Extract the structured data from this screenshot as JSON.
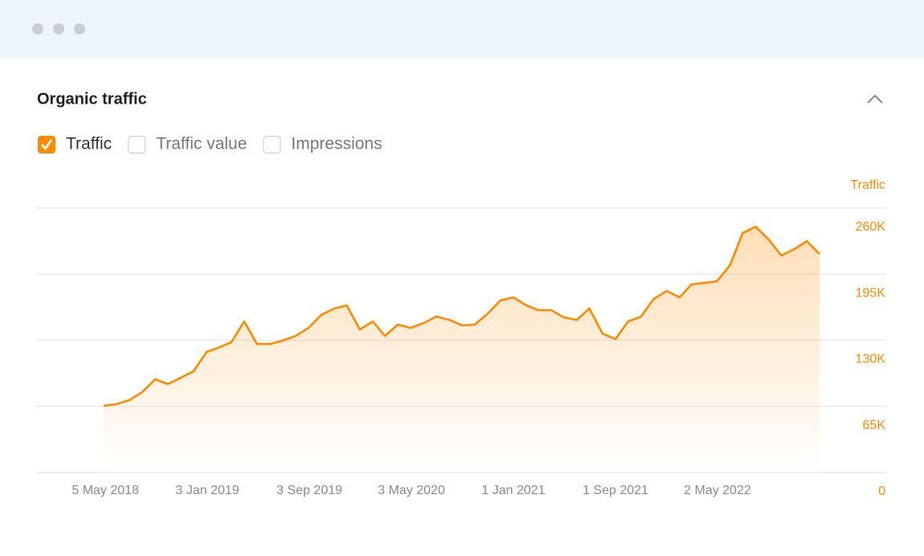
{
  "header": {
    "title": "Organic traffic"
  },
  "chart_data": {
    "type": "line",
    "y_label": "Traffic",
    "x": [
      "2018-05-01",
      "2018-06-01",
      "2018-07-01",
      "2018-08-01",
      "2018-09-01",
      "2018-10-01",
      "2018-11-01",
      "2018-12-01",
      "2019-01-01",
      "2019-02-01",
      "2019-03-01",
      "2019-04-01",
      "2019-05-01",
      "2019-06-01",
      "2019-07-01",
      "2019-08-01",
      "2019-09-01",
      "2019-10-01",
      "2019-11-01",
      "2019-12-01",
      "2020-01-01",
      "2020-02-01",
      "2020-03-01",
      "2020-04-01",
      "2020-05-01",
      "2020-06-01",
      "2020-07-01",
      "2020-08-01",
      "2020-09-01",
      "2020-10-01",
      "2020-11-01",
      "2020-12-01",
      "2021-01-01",
      "2021-02-01",
      "2021-03-01",
      "2021-04-01",
      "2021-05-01",
      "2021-06-01",
      "2021-07-01",
      "2021-08-01",
      "2021-09-01",
      "2021-10-01",
      "2021-11-01",
      "2021-12-01",
      "2022-01-01",
      "2022-02-01",
      "2022-03-01",
      "2022-04-01",
      "2022-05-01",
      "2022-06-01",
      "2022-07-01",
      "2022-08-01",
      "2022-09-01",
      "2022-10-01",
      "2022-11-01",
      "2022-12-01",
      "2022-12-31"
    ],
    "series": [
      {
        "name": "Traffic",
        "checked": true,
        "color": "#ff8a00",
        "values": [
          65600,
          67200,
          71100,
          79000,
          91600,
          86900,
          93200,
          99500,
          118500,
          123200,
          128000,
          148500,
          126400,
          126400,
          129600,
          134300,
          142200,
          154800,
          161200,
          164300,
          140600,
          148500,
          134300,
          145400,
          142200,
          146900,
          153300,
          150100,
          144600,
          145400,
          156400,
          169100,
          172200,
          164300,
          159600,
          159600,
          152500,
          150100,
          161200,
          136700,
          131100,
          148500,
          153300,
          170600,
          178500,
          172200,
          184900,
          186400,
          188000,
          203800,
          235400,
          241700,
          229100,
          213300,
          219600,
          227500,
          214900
        ]
      }
    ],
    "toggles": [
      {
        "name": "Traffic value",
        "checked": false
      },
      {
        "name": "Impressions",
        "checked": false
      }
    ],
    "xlim": [
      "2017-11-23",
      "2023-06-08"
    ],
    "xticks": [
      {
        "value": "2018-05-05",
        "label": "5 May 2018"
      },
      {
        "value": "2019-01-03",
        "label": "3 Jan 2019"
      },
      {
        "value": "2019-09-03",
        "label": "3 Sep 2019"
      },
      {
        "value": "2020-05-03",
        "label": "3 May 2020"
      },
      {
        "value": "2021-01-01",
        "label": "1 Jan 2021"
      },
      {
        "value": "2021-09-01",
        "label": "1 Sep 2021"
      },
      {
        "value": "2022-05-02",
        "label": "2 May 2022"
      }
    ],
    "ylim": [
      0,
      260000
    ],
    "yticks": [
      0,
      {
        "value": 65000,
        "label": "65K"
      },
      {
        "value": 130000,
        "label": "130K"
      },
      {
        "value": 195000,
        "label": "195K"
      },
      {
        "value": 260000,
        "label": "260K"
      }
    ],
    "grid": true
  }
}
